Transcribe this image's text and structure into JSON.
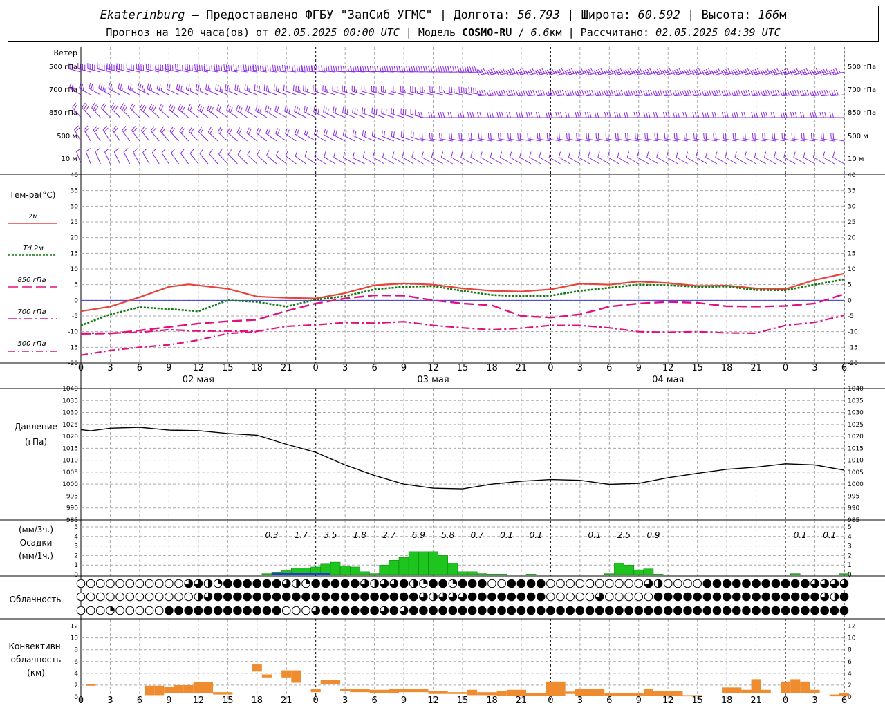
{
  "header": {
    "station": "Ekaterinburg",
    "provider": " – Предоставлено ФГБУ \"ЗапСиб УГМС\" | Долгота: ",
    "lon": "56.793",
    "lat_label": " | Широта: ",
    "lat": "60.592",
    "alt_label": " | Высота: ",
    "alt": "166",
    "alt_unit": "м",
    "line2_a": "Прогноз на 120 часа(ов) от ",
    "forecast_from": "02.05.2025 00:00 UTC",
    "line2_b": "  | Модель ",
    "model": "COSMO-RU",
    "line2_c": " / ",
    "resolution": "6.6",
    "res_unit": "км",
    "line2_d": " | Рассчитано: ",
    "computed": "02.05.2025 04:39 UTC"
  },
  "colors": {
    "wind": "#8a2be2",
    "t2m": "#e8433a",
    "td2m": "#117a11",
    "t850": "#e0117f",
    "t700": "#e0117f",
    "t500": "#e0117f",
    "pressure": "#000000",
    "precip": "#1ec51e",
    "precip_blue": "#1a3fcf",
    "convective": "#f08c30",
    "grid": "#aaaaaa"
  },
  "x_ticks": [
    "0",
    "3",
    "6",
    "9",
    "12",
    "15",
    "18",
    "21",
    "0",
    "3",
    "6",
    "9",
    "12",
    "15",
    "18",
    "21",
    "0",
    "3",
    "6",
    "9",
    "12",
    "15",
    "18",
    "21",
    "0",
    "3",
    "6"
  ],
  "days": [
    "02 мая",
    "03 мая",
    "04 мая"
  ],
  "wind_panel": {
    "title": "Ветер",
    "levels": [
      "500 гПа",
      "700 гПа",
      "850 гПа",
      "500 м",
      "10 м"
    ]
  },
  "chart_data": [
    {
      "type": "line",
      "id": "temperature",
      "title": "Тем-ра(°C)",
      "x_unit": "hours since 02.05.2025 00:00 UTC",
      "ylim": [
        -20,
        40
      ],
      "yticks": [
        40,
        35,
        30,
        25,
        20,
        15,
        10,
        5,
        0,
        -5,
        -10,
        -15,
        -20
      ],
      "series": [
        {
          "name": "2м",
          "x": [
            0,
            3,
            6,
            9,
            11,
            15,
            18,
            21,
            24,
            27,
            30,
            33,
            36,
            39,
            42,
            45,
            48,
            51,
            54,
            57,
            60,
            63,
            66,
            69,
            72,
            75,
            78
          ],
          "values": [
            -3.5,
            -2,
            1,
            4.3,
            5.1,
            3.7,
            1.2,
            0.8,
            0.6,
            2.3,
            4.8,
            5.4,
            5,
            3.8,
            3,
            2.8,
            3.5,
            5.3,
            5,
            6,
            5.5,
            4.6,
            4.7,
            3.8,
            3.6,
            6.5,
            8.5
          ]
        },
        {
          "name": "Td 2м",
          "x": [
            0,
            3,
            6,
            9,
            12,
            15,
            18,
            21,
            24,
            27,
            30,
            33,
            36,
            39,
            42,
            45,
            48,
            51,
            54,
            57,
            60,
            63,
            66,
            69,
            72,
            75,
            78
          ],
          "values": [
            -8,
            -4.5,
            -2.2,
            -2.8,
            -3.5,
            0,
            -0.5,
            -2,
            0.2,
            1.3,
            3.5,
            4.3,
            4.5,
            3,
            1.7,
            1.3,
            1.5,
            3,
            4,
            5,
            4.8,
            4.3,
            4.4,
            3.3,
            3.2,
            5,
            6.7
          ]
        },
        {
          "name": "850 гПа",
          "x": [
            0,
            3,
            6,
            9,
            12,
            15,
            18,
            21,
            24,
            27,
            30,
            33,
            36,
            39,
            42,
            45,
            48,
            51,
            54,
            57,
            60,
            63,
            66,
            69,
            72,
            75,
            78
          ],
          "values": [
            -10.7,
            -10.6,
            -9.6,
            -8.5,
            -7.4,
            -6.7,
            -6.2,
            -3.4,
            -1,
            0.6,
            1.6,
            1.5,
            0,
            -1,
            -1.6,
            -5,
            -5.5,
            -4.5,
            -2,
            -1,
            -0.5,
            -0.8,
            -1.9,
            -2,
            -1.8,
            -1,
            2
          ]
        },
        {
          "name": "700 гПа",
          "x": [
            0,
            3,
            6,
            9,
            12,
            15,
            18,
            21,
            24,
            27,
            30,
            33,
            36,
            39,
            42,
            45,
            48,
            51,
            54,
            57,
            60,
            63,
            66,
            69,
            72,
            75,
            78
          ],
          "values": [
            -10.5,
            -10.5,
            -10.2,
            -9.4,
            -9.8,
            -9.8,
            -9.9,
            -8.3,
            -7.8,
            -7.1,
            -7.3,
            -6.8,
            -8,
            -8.8,
            -9.4,
            -8.9,
            -8,
            -8,
            -8.8,
            -10,
            -10.2,
            -10,
            -10.4,
            -10.5,
            -8,
            -7,
            -4.8
          ]
        },
        {
          "name": "500 гПа",
          "x": [
            0,
            3,
            6,
            9,
            12,
            15,
            18
          ],
          "values": [
            -17.5,
            -16,
            -15,
            -14.2,
            -12.7,
            -10.6,
            -10
          ]
        }
      ]
    },
    {
      "type": "line",
      "id": "pressure",
      "title": "Давление",
      "ylabel": "(гПа)",
      "ylim": [
        985,
        1040
      ],
      "yticks": [
        1040,
        1035,
        1030,
        1025,
        1020,
        1015,
        1010,
        1005,
        1000,
        995,
        990,
        985
      ],
      "series": [
        {
          "name": "Давление",
          "x": [
            0,
            1,
            3,
            6,
            9,
            12,
            15,
            18,
            21,
            24,
            27,
            30,
            33,
            36,
            39,
            42,
            45,
            48,
            51,
            54,
            57,
            60,
            63,
            66,
            69,
            72,
            75,
            78
          ],
          "values": [
            1022.8,
            1022.3,
            1023.4,
            1023.8,
            1022.6,
            1022.4,
            1021.2,
            1020.5,
            1016.7,
            1013.3,
            1008,
            1003.6,
            1000,
            998.3,
            998,
            1000,
            1001.2,
            1001.9,
            1001.6,
            999.9,
            1000.3,
            1002.7,
            1004.5,
            1006.2,
            1007.1,
            1008.5,
            1008,
            1005.8
          ]
        }
      ]
    },
    {
      "type": "bar",
      "id": "precipitation",
      "title": "Осадки",
      "ylabel_3h": "(мм/3ч.)",
      "ylabel_1h": "(мм/1ч.)",
      "ylim": [
        0,
        5
      ],
      "yticks": [
        5,
        4,
        3,
        2,
        1,
        0
      ],
      "totals_3h": [
        {
          "x": 19.5,
          "label": "0.3"
        },
        {
          "x": 22.5,
          "label": "1.7"
        },
        {
          "x": 25.5,
          "label": "3.5"
        },
        {
          "x": 28.5,
          "label": "1.8"
        },
        {
          "x": 31.5,
          "label": "2.7"
        },
        {
          "x": 34.5,
          "label": "6.9"
        },
        {
          "x": 37.5,
          "label": "5.8"
        },
        {
          "x": 40.5,
          "label": "0.7"
        },
        {
          "x": 43.5,
          "label": "0.1"
        },
        {
          "x": 46.5,
          "label": "0.1"
        },
        {
          "x": 52.5,
          "label": "0.1"
        },
        {
          "x": 55.5,
          "label": "2.5"
        },
        {
          "x": 58.5,
          "label": "0.9"
        },
        {
          "x": 73.5,
          "label": "0.1"
        },
        {
          "x": 76.5,
          "label": "0.1"
        }
      ],
      "hours": [
        19,
        20,
        21,
        22,
        23,
        24,
        25,
        26,
        27,
        28,
        29,
        30,
        31,
        32,
        33,
        34,
        35,
        36,
        37,
        38,
        39,
        40,
        41,
        42,
        43,
        46,
        54,
        55,
        56,
        57,
        58,
        59,
        73,
        78
      ],
      "values": [
        0.1,
        0.2,
        0.4,
        0.7,
        0.7,
        0.8,
        1.1,
        1.3,
        0.9,
        0.8,
        0.3,
        0.1,
        1.0,
        1.5,
        1.8,
        2.4,
        2.4,
        2.4,
        2.0,
        1.2,
        0.3,
        0.3,
        0.1,
        0.05,
        0.05,
        0.05,
        0.1,
        1.2,
        1.0,
        0.5,
        0.6,
        0.05,
        0.1,
        0.1
      ]
    },
    {
      "type": "heatmap",
      "id": "cloudiness",
      "title": "Облачность",
      "rows": 3,
      "step_hours": 1,
      "legend": "0=clear,1=quarter,2=half,3=three-quarter,4=overcast",
      "row_top": "000000000003321444444321444443233421441444004444000000000032000044444444444333330000000200000000000000000020303324",
      "row_middle": "000000000000234444444444444444444443233344444444000003000004444444444444444432400000000000000000001334024444",
      "row_bottom": "000100000444444444444000344444434344444444444444444444444444444444444444444444444444444444444444444444444441003"
    },
    {
      "type": "bar",
      "id": "convective",
      "title": "Конвективн. облачность",
      "ylabel": "(км)",
      "ylim": [
        0,
        13
      ],
      "yticks": [
        12,
        10,
        8,
        6,
        4,
        2,
        0
      ],
      "bars": [
        {
          "x0": 0.5,
          "x1": 1.5,
          "base": 1.9,
          "top": 2.2
        },
        {
          "x0": 6.5,
          "x1": 7.5,
          "base": 0.3,
          "top": 1.9
        },
        {
          "x0": 7.5,
          "x1": 8.5,
          "base": 0.3,
          "top": 1.9
        },
        {
          "x0": 8.5,
          "x1": 9.5,
          "base": 0.6,
          "top": 1.7
        },
        {
          "x0": 9.5,
          "x1": 10.5,
          "base": 0.6,
          "top": 2.0
        },
        {
          "x0": 10.5,
          "x1": 11.5,
          "base": 0.6,
          "top": 2.0
        },
        {
          "x0": 11.5,
          "x1": 12.5,
          "base": 0.6,
          "top": 2.5
        },
        {
          "x0": 12.5,
          "x1": 13.5,
          "base": 0.6,
          "top": 2.5
        },
        {
          "x0": 13.5,
          "x1": 15.5,
          "base": 0.4,
          "top": 0.8
        },
        {
          "x0": 17.5,
          "x1": 18.5,
          "base": 4.3,
          "top": 5.5
        },
        {
          "x0": 18.5,
          "x1": 19.5,
          "base": 3.3,
          "top": 3.8
        },
        {
          "x0": 20.5,
          "x1": 21.5,
          "base": 3.3,
          "top": 4.5
        },
        {
          "x0": 21.5,
          "x1": 22.5,
          "base": 2.4,
          "top": 4.5
        },
        {
          "x0": 23.5,
          "x1": 24.5,
          "base": 0.8,
          "top": 1.3
        },
        {
          "x0": 24.5,
          "x1": 26.5,
          "base": 2.2,
          "top": 2.9
        },
        {
          "x0": 26.5,
          "x1": 27.5,
          "base": 1.0,
          "top": 1.4
        },
        {
          "x0": 27.5,
          "x1": 29.5,
          "base": 0.8,
          "top": 1.3
        },
        {
          "x0": 29.5,
          "x1": 31.5,
          "base": 0.6,
          "top": 1.2
        },
        {
          "x0": 31.5,
          "x1": 32.5,
          "base": 0.7,
          "top": 1.4
        },
        {
          "x0": 32.5,
          "x1": 35.5,
          "base": 0.8,
          "top": 1.3
        },
        {
          "x0": 35.5,
          "x1": 37.5,
          "base": 0.5,
          "top": 1.0
        },
        {
          "x0": 37.5,
          "x1": 39.5,
          "base": 0.5,
          "top": 0.8
        },
        {
          "x0": 39.5,
          "x1": 40.5,
          "base": 0.3,
          "top": 1.2
        },
        {
          "x0": 40.5,
          "x1": 42.5,
          "base": 0.3,
          "top": 0.8
        },
        {
          "x0": 42.5,
          "x1": 43.5,
          "base": 0.2,
          "top": 1.0
        },
        {
          "x0": 43.5,
          "x1": 45.5,
          "base": 0.2,
          "top": 1.2
        },
        {
          "x0": 45.5,
          "x1": 47.5,
          "base": 0.2,
          "top": 0.7
        },
        {
          "x0": 47.5,
          "x1": 49.5,
          "base": 0.2,
          "top": 2.6
        },
        {
          "x0": 49.5,
          "x1": 50.5,
          "base": 0.5,
          "top": 0.9
        },
        {
          "x0": 50.5,
          "x1": 53.5,
          "base": 0.2,
          "top": 1.3
        },
        {
          "x0": 53.5,
          "x1": 55.5,
          "base": 0.2,
          "top": 0.7
        },
        {
          "x0": 55.5,
          "x1": 57.5,
          "base": 0.2,
          "top": 0.7
        },
        {
          "x0": 57.5,
          "x1": 58.5,
          "base": 0.2,
          "top": 1.3
        },
        {
          "x0": 58.5,
          "x1": 61.5,
          "base": 0.2,
          "top": 1.0
        },
        {
          "x0": 61.5,
          "x1": 63.5,
          "base": 0.1,
          "top": 0.3
        },
        {
          "x0": 65.5,
          "x1": 67.5,
          "base": 0.6,
          "top": 1.6
        },
        {
          "x0": 67.5,
          "x1": 68.5,
          "base": 0.6,
          "top": 1.2
        },
        {
          "x0": 68.5,
          "x1": 69.5,
          "base": 0.6,
          "top": 3.0
        },
        {
          "x0": 69.5,
          "x1": 70.5,
          "base": 0.6,
          "top": 1.2
        },
        {
          "x0": 71.5,
          "x1": 72.5,
          "base": 0.6,
          "top": 2.6
        },
        {
          "x0": 72.5,
          "x1": 73.5,
          "base": 0.6,
          "top": 3.0
        },
        {
          "x0": 73.5,
          "x1": 74.5,
          "base": 0.6,
          "top": 2.6
        },
        {
          "x0": 74.5,
          "x1": 75.5,
          "base": 0.6,
          "top": 1.2
        },
        {
          "x0": 76.5,
          "x1": 77.5,
          "base": 0.1,
          "top": 0.4
        },
        {
          "x0": 77.5,
          "x1": 78.5,
          "base": 0.1,
          "top": 0.6
        }
      ]
    }
  ]
}
